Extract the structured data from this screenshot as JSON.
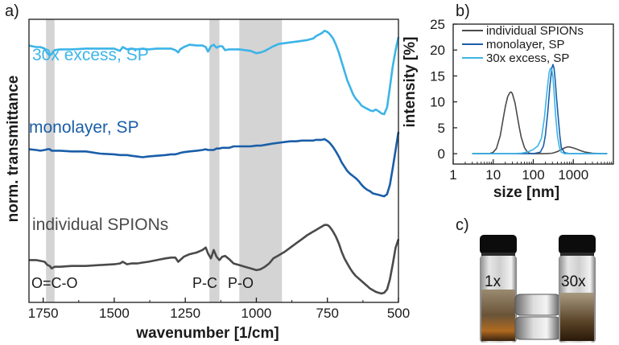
{
  "panel_labels": {
    "a": "a)",
    "b": "b)",
    "c": "c)"
  },
  "colors": {
    "individual": "#4a4a4a",
    "monolayer": "#1a5ea8",
    "excess": "#3cb4e8",
    "band": "#d4d4d4",
    "axis": "#1a1a1a"
  },
  "chart_data": [
    {
      "type": "line",
      "title": "",
      "xlabel": "wavenumber [1/cm]",
      "ylabel": "norm. transmittance",
      "xlim": [
        1800,
        500
      ],
      "x_ticks": [
        1750,
        1500,
        1250,
        1000,
        750,
        500
      ],
      "x_tick_labels": [
        "1750",
        "1500",
        "1250",
        "1000",
        "750",
        "500"
      ],
      "y_ticks": "none",
      "bands": [
        {
          "label": "O=C-O",
          "from": 1740,
          "to": 1710
        },
        {
          "label": "P-C",
          "from": 1165,
          "to": 1130
        },
        {
          "label": "P-O",
          "from": 1060,
          "to": 910
        }
      ],
      "series": [
        {
          "name": "30x excess, SP",
          "color_key": "excess",
          "offset": 2,
          "x": [
            1800,
            1775,
            1760,
            1745,
            1735,
            1727,
            1720,
            1710,
            1690,
            1650,
            1600,
            1550,
            1500,
            1480,
            1470,
            1455,
            1440,
            1420,
            1400,
            1380,
            1350,
            1320,
            1300,
            1285,
            1275,
            1268,
            1255,
            1235,
            1210,
            1190,
            1178,
            1170,
            1160,
            1150,
            1140,
            1130,
            1120,
            1110,
            1095,
            1080,
            1060,
            1040,
            1020,
            1000,
            985,
            970,
            955,
            940,
            920,
            900,
            880,
            860,
            840,
            820,
            800,
            790,
            780,
            770,
            760,
            752,
            745,
            738,
            730,
            720,
            710,
            700,
            690,
            680,
            670,
            660,
            650,
            640,
            630,
            620,
            610,
            600,
            590,
            580,
            570,
            560,
            550,
            540,
            530,
            520,
            510,
            500
          ],
          "y": [
            0.89,
            0.87,
            0.87,
            0.85,
            0.79,
            0.76,
            0.78,
            0.83,
            0.84,
            0.84,
            0.85,
            0.85,
            0.85,
            0.82,
            0.87,
            0.84,
            0.85,
            0.84,
            0.85,
            0.84,
            0.85,
            0.85,
            0.85,
            0.83,
            0.8,
            0.84,
            0.87,
            0.9,
            0.89,
            0.89,
            0.87,
            0.81,
            0.88,
            0.9,
            0.86,
            0.88,
            0.88,
            0.83,
            0.84,
            0.84,
            0.84,
            0.83,
            0.82,
            0.79,
            0.8,
            0.82,
            0.85,
            0.88,
            0.91,
            0.92,
            0.93,
            0.94,
            0.95,
            0.96,
            0.98,
            1.01,
            1.03,
            1.05,
            1.08,
            1.07,
            1.05,
            1.02,
            0.98,
            0.9,
            0.8,
            0.68,
            0.56,
            0.44,
            0.35,
            0.26,
            0.2,
            0.16,
            0.11,
            0.09,
            0.07,
            0.05,
            0.04,
            0.06,
            0.04,
            0.01,
            0.0,
            0.09,
            0.35,
            0.62,
            0.83,
            1.0
          ]
        },
        {
          "name": "monolayer, SP",
          "color_key": "monolayer",
          "offset": 1,
          "x": [
            1800,
            1775,
            1760,
            1745,
            1735,
            1727,
            1720,
            1710,
            1690,
            1650,
            1600,
            1550,
            1500,
            1480,
            1470,
            1455,
            1440,
            1420,
            1400,
            1380,
            1350,
            1320,
            1300,
            1285,
            1275,
            1268,
            1255,
            1235,
            1210,
            1190,
            1178,
            1170,
            1160,
            1150,
            1140,
            1130,
            1120,
            1110,
            1095,
            1080,
            1060,
            1040,
            1020,
            1000,
            985,
            970,
            955,
            940,
            920,
            900,
            880,
            860,
            840,
            820,
            800,
            790,
            780,
            770,
            760,
            752,
            745,
            738,
            730,
            720,
            710,
            700,
            690,
            680,
            670,
            660,
            650,
            640,
            630,
            620,
            610,
            600,
            590,
            580,
            570,
            560,
            550,
            540,
            530,
            520,
            510,
            500
          ],
          "y": [
            0.66,
            0.65,
            0.64,
            0.65,
            0.66,
            0.66,
            0.64,
            0.64,
            0.64,
            0.63,
            0.63,
            0.6,
            0.59,
            0.58,
            0.58,
            0.58,
            0.57,
            0.56,
            0.55,
            0.56,
            0.57,
            0.58,
            0.59,
            0.59,
            0.6,
            0.61,
            0.62,
            0.63,
            0.64,
            0.65,
            0.66,
            0.65,
            0.65,
            0.65,
            0.67,
            0.67,
            0.68,
            0.68,
            0.68,
            0.7,
            0.7,
            0.7,
            0.7,
            0.71,
            0.71,
            0.72,
            0.73,
            0.74,
            0.75,
            0.76,
            0.77,
            0.77,
            0.78,
            0.78,
            0.78,
            0.79,
            0.79,
            0.79,
            0.8,
            0.78,
            0.76,
            0.73,
            0.69,
            0.63,
            0.56,
            0.48,
            0.42,
            0.36,
            0.32,
            0.29,
            0.26,
            0.22,
            0.17,
            0.13,
            0.1,
            0.08,
            0.05,
            0.04,
            0.03,
            0.02,
            0.01,
            0.04,
            0.17,
            0.4,
            0.65,
            0.9
          ]
        },
        {
          "name": "individual SPIONs",
          "color_key": "individual",
          "offset": 0,
          "x": [
            1800,
            1775,
            1760,
            1745,
            1735,
            1727,
            1720,
            1710,
            1690,
            1650,
            1600,
            1550,
            1500,
            1480,
            1470,
            1455,
            1440,
            1420,
            1400,
            1380,
            1350,
            1320,
            1300,
            1285,
            1275,
            1268,
            1255,
            1235,
            1210,
            1190,
            1178,
            1170,
            1160,
            1150,
            1140,
            1130,
            1120,
            1110,
            1095,
            1080,
            1060,
            1040,
            1020,
            1000,
            985,
            970,
            955,
            940,
            920,
            900,
            880,
            860,
            840,
            820,
            800,
            790,
            780,
            770,
            760,
            752,
            745,
            738,
            730,
            720,
            710,
            700,
            690,
            680,
            670,
            660,
            650,
            640,
            630,
            620,
            610,
            600,
            590,
            580,
            570,
            560,
            550,
            540,
            530,
            520,
            510,
            500
          ],
          "y": [
            0.4,
            0.4,
            0.39,
            0.38,
            0.34,
            0.33,
            0.3,
            0.32,
            0.32,
            0.33,
            0.33,
            0.34,
            0.35,
            0.36,
            0.38,
            0.35,
            0.36,
            0.36,
            0.37,
            0.38,
            0.4,
            0.42,
            0.43,
            0.43,
            0.38,
            0.4,
            0.44,
            0.47,
            0.49,
            0.52,
            0.55,
            0.48,
            0.42,
            0.52,
            0.44,
            0.4,
            0.44,
            0.45,
            0.41,
            0.36,
            0.34,
            0.32,
            0.3,
            0.28,
            0.29,
            0.32,
            0.36,
            0.42,
            0.46,
            0.5,
            0.55,
            0.6,
            0.65,
            0.7,
            0.74,
            0.76,
            0.78,
            0.8,
            0.82,
            0.82,
            0.81,
            0.78,
            0.74,
            0.68,
            0.6,
            0.5,
            0.42,
            0.36,
            0.3,
            0.25,
            0.21,
            0.18,
            0.15,
            0.12,
            0.09,
            0.06,
            0.04,
            0.02,
            0.01,
            0.0,
            0.01,
            0.05,
            0.17,
            0.35,
            0.55,
            0.65
          ]
        }
      ]
    },
    {
      "type": "line",
      "title": "",
      "xlabel": "size [nm]",
      "ylabel": "intensity [%]",
      "x_scale": "log",
      "xlim": [
        1,
        10000
      ],
      "ylim": [
        -2,
        25
      ],
      "x_ticks": [
        1,
        10,
        100,
        1000
      ],
      "x_tick_labels": [
        "1",
        "10",
        "100",
        "1000"
      ],
      "y_ticks": [
        0,
        5,
        10,
        15,
        20,
        25
      ],
      "y_tick_labels": [
        "0",
        "5",
        "10",
        "15",
        "20",
        "25"
      ],
      "legend": "top-right",
      "series": [
        {
          "name": "individual SPIONs",
          "color_key": "individual",
          "x": [
            3,
            8,
            10,
            12,
            15,
            18,
            20,
            23,
            26,
            28,
            30,
            35,
            40,
            45,
            50,
            60,
            70,
            80,
            100,
            150,
            200,
            300,
            400,
            500,
            600,
            700,
            800,
            900,
            1000,
            1200,
            1500,
            2000,
            3000,
            5000,
            7000
          ],
          "y": [
            0,
            0,
            0.3,
            1.0,
            3.5,
            7.0,
            9.0,
            11.0,
            11.8,
            11.9,
            11.6,
            9.8,
            7.2,
            5.0,
            3.2,
            1.2,
            0.4,
            0.1,
            0,
            0,
            0,
            0.1,
            0.4,
            0.8,
            1.1,
            1.3,
            1.3,
            1.2,
            1.1,
            0.9,
            0.6,
            0.3,
            0.1,
            0,
            0
          ]
        },
        {
          "name": "monolayer, SP",
          "color_key": "monolayer",
          "x": [
            3,
            50,
            100,
            150,
            180,
            200,
            230,
            260,
            290,
            310,
            330,
            350,
            380,
            420,
            460,
            500,
            600,
            800,
            7000
          ],
          "y": [
            0,
            0,
            0,
            0.3,
            1.5,
            3.5,
            8.0,
            13.0,
            16.5,
            17.2,
            16.5,
            14.5,
            11.0,
            7.0,
            3.5,
            1.2,
            0.2,
            0,
            0
          ]
        },
        {
          "name": "30x excess, SP",
          "color_key": "excess",
          "x": [
            3,
            30,
            50,
            70,
            100,
            130,
            160,
            190,
            220,
            250,
            270,
            290,
            310,
            330,
            360,
            400,
            450,
            500,
            600,
            800,
            7000
          ],
          "y": [
            0,
            0,
            0.1,
            0.3,
            0.8,
            1.5,
            3.0,
            7.0,
            12.0,
            15.8,
            16.5,
            16.2,
            14.8,
            12.0,
            7.5,
            3.5,
            1.2,
            0.3,
            0,
            0,
            0
          ]
        }
      ]
    }
  ],
  "photo": {
    "label_left": "1x",
    "label_right": "30x"
  }
}
